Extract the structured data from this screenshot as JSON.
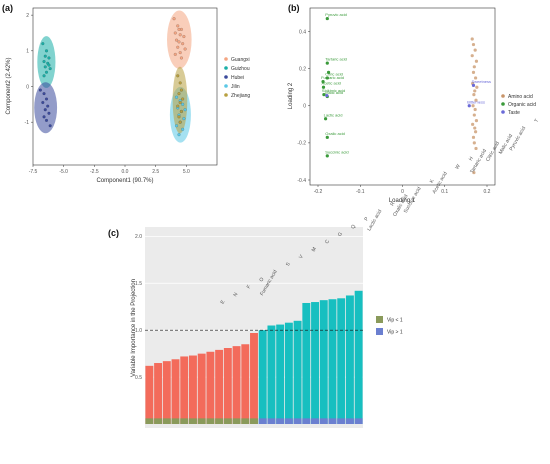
{
  "chart_data": [
    {
      "panel": "(a)",
      "type": "scatter",
      "xlabel": "Component1 (90.7%)",
      "ylabel": "Component2 (2.42%)",
      "xlim": [
        -7.5,
        7.5
      ],
      "ylim": [
        -2.2,
        2.2
      ],
      "xticks": [
        "-7.5",
        "-5.0",
        "-2.5",
        "0.0",
        "2.5",
        "5.0"
      ],
      "xtick_values": [
        -7.5,
        -5.0,
        -2.5,
        0.0,
        2.5,
        5.0
      ],
      "yticks": [
        "2",
        "1",
        "0",
        "-1"
      ],
      "ytick_values": [
        2,
        1,
        0,
        -1
      ],
      "legend_position": "right",
      "series": [
        {
          "name": "Guangxi",
          "color": "#f4a582",
          "x": [
            4.0,
            4.3,
            4.6,
            4.1,
            4.5,
            4.8,
            4.2,
            4.4,
            4.7,
            4.3,
            4.9,
            4.5,
            4.1,
            4.6,
            4.4
          ],
          "y": [
            1.9,
            1.7,
            1.6,
            1.5,
            1.45,
            1.4,
            1.3,
            1.25,
            1.2,
            1.1,
            1.05,
            0.95,
            0.9,
            0.8,
            1.6
          ]
        },
        {
          "name": "Guizhou",
          "color": "#1aafa7",
          "x": [
            -6.7,
            -6.4,
            -6.5,
            -6.2,
            -6.6,
            -6.3,
            -6.5,
            -6.1,
            -6.4,
            -6.6,
            -6.2
          ],
          "y": [
            1.2,
            1.0,
            0.85,
            0.8,
            0.7,
            0.65,
            0.55,
            0.5,
            0.4,
            0.3,
            0.6
          ]
        },
        {
          "name": "Hubei",
          "color": "#3b4a9c",
          "x": [
            -6.9,
            -6.6,
            -6.4,
            -6.7,
            -6.3,
            -6.5,
            -6.2,
            -6.6,
            -6.4,
            -6.1
          ],
          "y": [
            -0.1,
            -0.2,
            -0.35,
            -0.45,
            -0.55,
            -0.65,
            -0.75,
            -0.85,
            -0.95,
            -1.1
          ]
        },
        {
          "name": "Jilin",
          "color": "#5bc8e6",
          "x": [
            4.2,
            4.5,
            4.7,
            4.3,
            4.9,
            4.6,
            4.4,
            4.8,
            4.5,
            4.2,
            4.7,
            4.4
          ],
          "y": [
            -0.3,
            -0.4,
            -0.5,
            -0.6,
            -0.65,
            -0.7,
            -0.8,
            -0.9,
            -1.0,
            -1.1,
            -1.2,
            -1.35
          ]
        },
        {
          "name": "Zhejiang",
          "color": "#b8a040",
          "x": [
            4.3,
            4.5,
            4.6,
            4.4,
            4.7,
            4.5,
            4.3,
            4.6,
            4.4,
            4.5
          ],
          "y": [
            0.3,
            0.1,
            -0.1,
            -0.2,
            -0.35,
            -0.45,
            -0.55,
            -0.7,
            -0.85,
            -1.0
          ]
        }
      ]
    },
    {
      "panel": "(b)",
      "type": "scatter",
      "xlabel": "Loading 1",
      "ylabel": "Loading 2",
      "xlim": [
        -0.2,
        0.2
      ],
      "ylim": [
        -0.4,
        0.5
      ],
      "xticks": [
        "-0.2",
        "-0.1",
        "0",
        "0.1",
        "0.2"
      ],
      "xtick_values": [
        -0.2,
        -0.1,
        0,
        0.1,
        0.2
      ],
      "yticks": [
        "0.4",
        "0.2",
        "0",
        "-0.2",
        "-0.4"
      ],
      "ytick_values": [
        0.4,
        0.2,
        0,
        -0.2,
        -0.4
      ],
      "legend_position": "right",
      "series": [
        {
          "name": "Amino acid",
          "color": "#c8956a",
          "x": [
            0.168,
            0.172,
            0.165,
            0.175,
            0.17,
            0.168,
            0.173,
            0.166,
            0.176,
            0.171,
            0.169,
            0.174,
            0.167,
            0.172,
            0.17,
            0.175,
            0.166,
            0.171,
            0.173,
            0.168,
            0.17,
            0.174,
            0.165,
            0.169
          ],
          "y": [
            0.33,
            0.3,
            0.27,
            0.24,
            0.21,
            0.18,
            0.15,
            0.12,
            0.1,
            0.08,
            0.06,
            0.03,
            0.0,
            -0.02,
            -0.05,
            -0.08,
            -0.1,
            -0.12,
            -0.14,
            -0.17,
            -0.2,
            -0.23,
            0.36,
            -0.36
          ]
        },
        {
          "name": "Organic acid",
          "color": "#3a9a3a",
          "x": [
            -0.178,
            -0.178,
            -0.178,
            -0.188,
            -0.187,
            -0.186,
            -0.178,
            -0.182,
            -0.178,
            -0.178,
            -0.175
          ],
          "y": [
            0.47,
            0.23,
            0.15,
            0.13,
            0.1,
            0.06,
            0.05,
            -0.07,
            -0.17,
            -0.27,
            0.18
          ],
          "labels": [
            "Pyruvic acid",
            "Tartaric acid",
            "Citric acid",
            "Fumaric acid",
            "Acetic acid",
            "Shikimic acid",
            "Malic acid",
            "Lactic acid",
            "Oxalic acid",
            "Succinic acid",
            ""
          ]
        },
        {
          "name": "Taste",
          "color": "#6a6ad8",
          "x": [
            -0.179,
            0.168,
            0.158
          ],
          "y": [
            0.055,
            0.11,
            0.0
          ],
          "labels": [
            "",
            "Sweetness",
            "Bitterness"
          ]
        }
      ]
    },
    {
      "panel": "(c)",
      "type": "bar",
      "xlabel": "",
      "ylabel": "Variable Importance in the Projection",
      "ylim": [
        0,
        2.1
      ],
      "yticks": [
        "0.5",
        "1.0",
        "1.5",
        "2.0"
      ],
      "ytick_values": [
        0.5,
        1.0,
        1.5,
        2.0
      ],
      "reference_line": 1.0,
      "legend_position": "right",
      "categories": [
        "E",
        "N",
        "F",
        "O",
        "Fumaric acid",
        "S",
        "V",
        "M",
        "C",
        "G",
        "Q",
        "P",
        "Lactic acid",
        "R",
        "Oxalic acid",
        "Succinic acid",
        "K",
        "Acetic acid",
        "W",
        "H",
        "Tartaric acid",
        "Citric acid",
        "Malic acid",
        "Pyruvic acid",
        "T"
      ],
      "values": [
        0.62,
        0.65,
        0.67,
        0.69,
        0.72,
        0.73,
        0.75,
        0.77,
        0.79,
        0.81,
        0.83,
        0.85,
        0.97,
        1.0,
        1.05,
        1.06,
        1.08,
        1.1,
        1.29,
        1.3,
        1.32,
        1.33,
        1.34,
        1.37,
        1.42
      ],
      "bar_color_low": "#f36b5b",
      "bar_color_high": "#17bfc0",
      "series": [
        {
          "name": "Vip < 1",
          "color": "#8a9a5b"
        },
        {
          "name": "Vip > 1",
          "color": "#6b7fd0"
        }
      ]
    }
  ]
}
